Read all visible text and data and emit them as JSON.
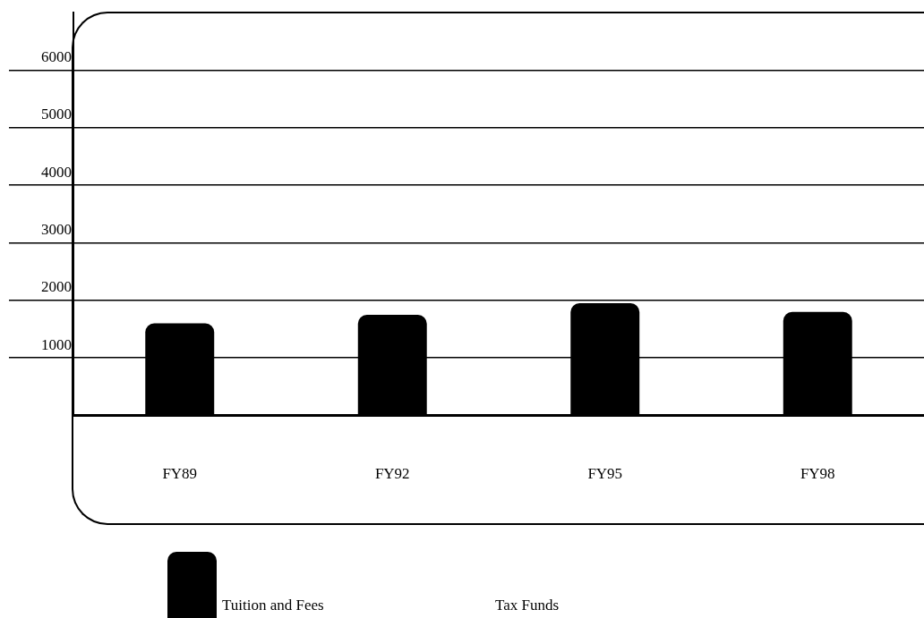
{
  "chart_data": {
    "type": "bar",
    "categories": [
      "FY89",
      "FY92",
      "FY95",
      "FY98"
    ],
    "series": [
      {
        "name": "Tuition and Fees",
        "color": "#000000",
        "values": [
          1600,
          1750,
          1950,
          1800
        ]
      }
    ],
    "annotations": [
      "Tax Funds"
    ],
    "ylim": [
      0,
      7000
    ],
    "yticks": [
      1000,
      2000,
      3000,
      4000,
      5000,
      6000
    ],
    "grid": "y",
    "legend": "bottom"
  }
}
